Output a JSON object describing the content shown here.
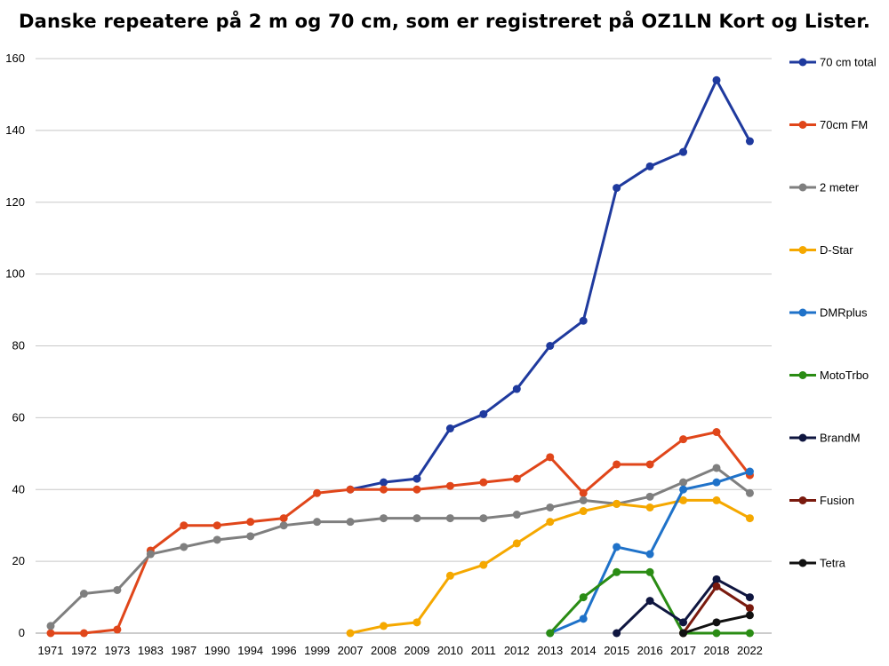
{
  "chart_data": {
    "type": "line",
    "title": "Danske repeatere på 2 m og 70 cm, som er registreret på OZ1LN Kort og Lister.",
    "xlabel": "",
    "ylabel": "",
    "ylim": [
      0,
      160
    ],
    "yticks": [
      0,
      20,
      40,
      60,
      80,
      100,
      120,
      140,
      160
    ],
    "grid": true,
    "legend_position": "right",
    "categories": [
      "1971",
      "1972",
      "1973",
      "1983",
      "1987",
      "1990",
      "1994",
      "1996",
      "1999",
      "2007",
      "2008",
      "2009",
      "2010",
      "2011",
      "2012",
      "2013",
      "2014",
      "2015",
      "2016",
      "2017",
      "2018",
      "2022"
    ],
    "series": [
      {
        "name": "70 cm total",
        "color": "#1f3a9e",
        "values": [
          null,
          null,
          null,
          null,
          null,
          null,
          null,
          null,
          null,
          40,
          42,
          43,
          57,
          61,
          68,
          80,
          87,
          124,
          130,
          134,
          154,
          137
        ]
      },
      {
        "name": "70cm FM",
        "color": "#e0461a",
        "values": [
          0,
          0,
          1,
          23,
          30,
          30,
          31,
          32,
          39,
          40,
          40,
          40,
          41,
          42,
          43,
          49,
          39,
          47,
          47,
          54,
          56,
          44
        ]
      },
      {
        "name": "2 meter",
        "color": "#7f7f7f",
        "values": [
          2,
          11,
          12,
          22,
          24,
          26,
          27,
          30,
          31,
          31,
          32,
          32,
          32,
          32,
          33,
          35,
          37,
          36,
          38,
          42,
          46,
          39
        ]
      },
      {
        "name": "D-Star",
        "color": "#f5a800",
        "values": [
          null,
          null,
          null,
          null,
          null,
          null,
          null,
          null,
          null,
          0,
          2,
          3,
          16,
          19,
          25,
          31,
          34,
          36,
          35,
          37,
          37,
          32
        ]
      },
      {
        "name": "DMRplus",
        "color": "#1f72c9",
        "values": [
          null,
          null,
          null,
          null,
          null,
          null,
          null,
          null,
          null,
          null,
          null,
          null,
          null,
          null,
          null,
          0,
          4,
          24,
          22,
          40,
          42,
          45
        ]
      },
      {
        "name": "MotoTrbo",
        "color": "#2a8c14",
        "values": [
          null,
          null,
          null,
          null,
          null,
          null,
          null,
          null,
          null,
          null,
          null,
          null,
          null,
          null,
          null,
          0,
          10,
          17,
          17,
          0,
          0,
          0
        ]
      },
      {
        "name": "BrandM",
        "color": "#0f1640",
        "values": [
          null,
          null,
          null,
          null,
          null,
          null,
          null,
          null,
          null,
          null,
          null,
          null,
          null,
          null,
          null,
          null,
          null,
          0,
          9,
          3,
          15,
          10
        ]
      },
      {
        "name": "Fusion",
        "color": "#7a1a0e",
        "values": [
          null,
          null,
          null,
          null,
          null,
          null,
          null,
          null,
          null,
          null,
          null,
          null,
          null,
          null,
          null,
          null,
          null,
          null,
          null,
          0,
          13,
          7
        ]
      },
      {
        "name": "Tetra",
        "color": "#111111",
        "values": [
          null,
          null,
          null,
          null,
          null,
          null,
          null,
          null,
          null,
          null,
          null,
          null,
          null,
          null,
          null,
          null,
          null,
          null,
          null,
          0,
          3,
          5
        ]
      }
    ]
  }
}
